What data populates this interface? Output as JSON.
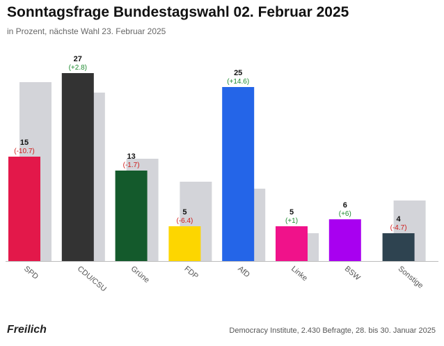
{
  "header": {
    "title": "Sonntagsfrage Bundestagswahl 02. Februar 2025",
    "subtitle": "in Prozent, nächste Wahl 23. Februar 2025"
  },
  "footer": {
    "brand": "Freilich",
    "source": "Democracy Institute, 2.430 Befragte, 28. bis 30. Januar 2025"
  },
  "chart_data": {
    "type": "bar",
    "title": "Sonntagsfrage Bundestagswahl 02. Februar 2025",
    "subtitle": "in Prozent, nächste Wahl 23. Februar 2025",
    "categories": [
      "SPD",
      "CDU/CSU",
      "Grüne",
      "FDP",
      "AfD",
      "Linke",
      "BSW",
      "Sonstige"
    ],
    "series": [
      {
        "values": [
          15,
          27,
          13,
          5,
          25,
          5,
          6,
          4
        ],
        "changes": [
          "(-10.7)",
          "(+2.8)",
          "(-1.7)",
          "(-6.4)",
          "(+14.6)",
          "(+1)",
          "(+6)",
          "(-4.7)"
        ],
        "colors": [
          "#e3184a",
          "#333333",
          "#145a2c",
          "#fdd600",
          "#2465e8",
          "#f0128a",
          "#a800f0",
          "#2e4350"
        ]
      },
      {
        "values": [
          25.7,
          24.2,
          14.7,
          11.4,
          10.4,
          4.0,
          0,
          8.7
        ],
        "color": "#d3d4d9"
      }
    ],
    "ylim": [
      0,
      30
    ],
    "positive_change_color": "#1d8a2f",
    "negative_change_color": "#d01c1c",
    "xlabel": "",
    "ylabel": "",
    "grid": false,
    "legend": "none"
  }
}
